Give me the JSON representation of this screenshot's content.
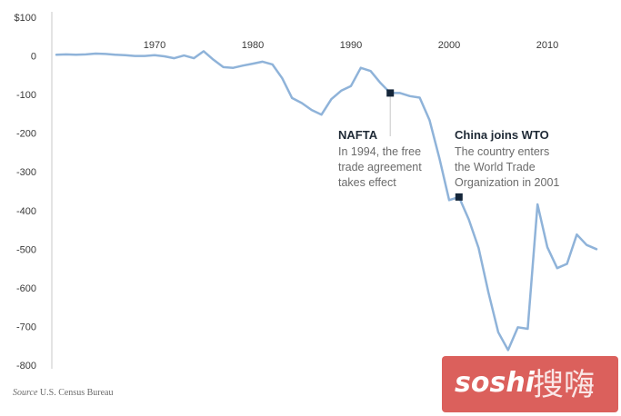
{
  "chart_data": {
    "type": "line",
    "x": [
      1960,
      1961,
      1962,
      1963,
      1964,
      1965,
      1966,
      1967,
      1968,
      1969,
      1970,
      1971,
      1972,
      1973,
      1974,
      1975,
      1976,
      1977,
      1978,
      1979,
      1980,
      1981,
      1982,
      1983,
      1984,
      1985,
      1986,
      1987,
      1988,
      1989,
      1990,
      1991,
      1992,
      1993,
      1994,
      1995,
      1996,
      1997,
      1998,
      1999,
      2000,
      2001,
      2002,
      2003,
      2004,
      2005,
      2006,
      2007,
      2008,
      2009,
      2010,
      2011,
      2012,
      2013,
      2014,
      2015
    ],
    "y": [
      3,
      4,
      3,
      4,
      6,
      5,
      3,
      2,
      0,
      0,
      2,
      -1,
      -6,
      1,
      -6,
      12,
      -10,
      -29,
      -31,
      -25,
      -20,
      -15,
      -22,
      -58,
      -109,
      -122,
      -140,
      -152,
      -112,
      -90,
      -78,
      -31,
      -39,
      -70,
      -96,
      -96,
      -104,
      -108,
      -166,
      -264,
      -373,
      -365,
      -423,
      -497,
      -612,
      -715,
      -761,
      -702,
      -706,
      -384,
      -495,
      -549,
      -538,
      -462,
      -489,
      -500
    ],
    "yticks": [
      "$100",
      "0",
      "-100",
      "-200",
      "-300",
      "-400",
      "-500",
      "-600",
      "-700",
      "-800"
    ],
    "xticks": [
      "1970",
      "1980",
      "1990",
      "2000",
      "2010"
    ],
    "ylim": [
      -800,
      100
    ],
    "xlim": [
      1960,
      2015
    ],
    "grid": false,
    "line_color": "#8fb3d9",
    "annotations": [
      {
        "x": 1994,
        "y": -96,
        "title": "NAFTA",
        "lines": [
          "In 1994, the free",
          "trade agreement",
          "takes effect"
        ]
      },
      {
        "x": 2001,
        "y": -365,
        "title": "China joins WTO",
        "lines": [
          "The country enters",
          "the World Trade",
          "Organization in 2001"
        ]
      }
    ],
    "source_label": "Source",
    "source_text": "U.S. Census Bureau"
  },
  "watermark": {
    "text": "soshi",
    "cjk": "搜嗨"
  }
}
